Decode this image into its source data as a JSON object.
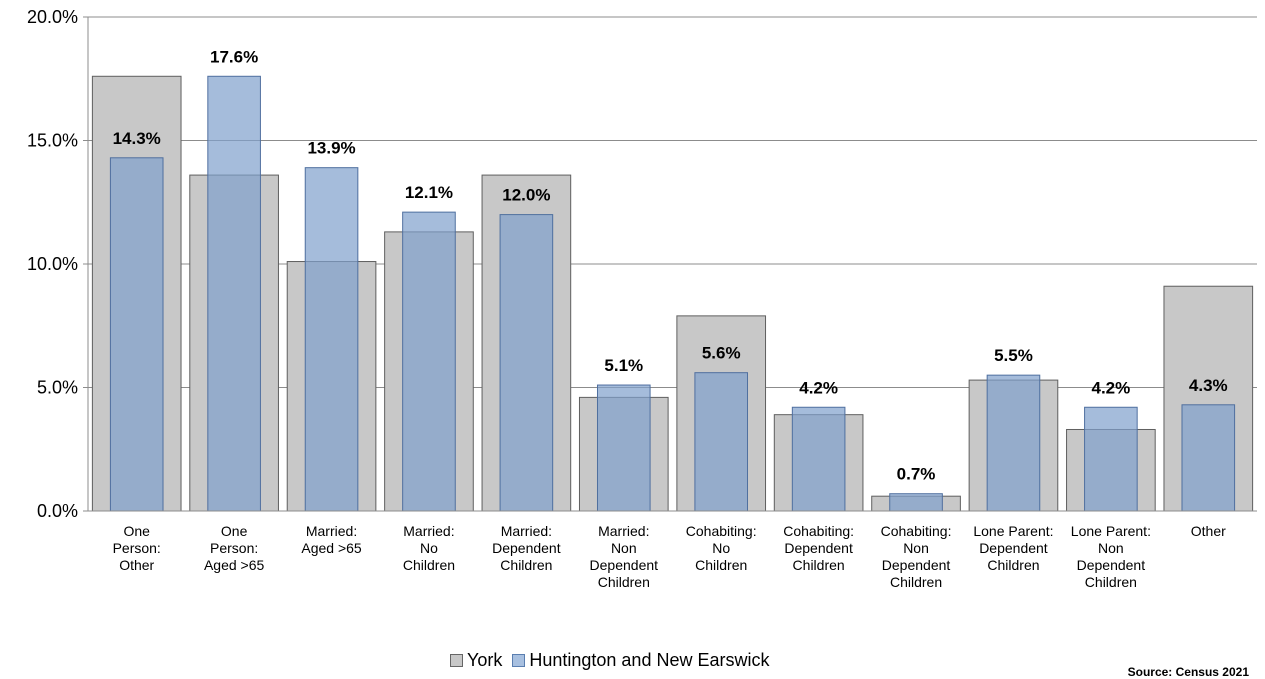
{
  "chart_data": {
    "type": "bar",
    "categories": [
      [
        "One",
        "Person:",
        "Other"
      ],
      [
        "One",
        "Person:",
        "Aged >65"
      ],
      [
        "Married:",
        "Aged >65"
      ],
      [
        "Married:",
        "No",
        "Children"
      ],
      [
        "Married:",
        "Dependent",
        "Children"
      ],
      [
        "Married:",
        "Non",
        "Dependent",
        "Children"
      ],
      [
        "Cohabiting:",
        "No",
        "Children"
      ],
      [
        "Cohabiting:",
        "Dependent",
        "Children"
      ],
      [
        "Cohabiting:",
        "Non",
        "Dependent",
        "Children"
      ],
      [
        "Lone Parent:",
        "Dependent",
        "Children"
      ],
      [
        "Lone Parent:",
        "Non",
        "Dependent",
        "Children"
      ],
      [
        "Other"
      ]
    ],
    "series": [
      {
        "name": "York",
        "color": "#c8c8c8",
        "values": [
          17.6,
          13.6,
          10.1,
          11.3,
          13.6,
          4.6,
          7.9,
          3.9,
          0.6,
          5.3,
          3.3,
          9.1
        ]
      },
      {
        "name": "Huntington and New Earswick",
        "color": "#7f9fcc",
        "values": [
          14.3,
          17.6,
          13.9,
          12.1,
          12.0,
          5.1,
          5.6,
          4.2,
          0.7,
          5.5,
          4.2,
          4.3
        ]
      }
    ],
    "data_labels": [
      "14.3%",
      "17.6%",
      "13.9%",
      "12.1%",
      "12.0%",
      "5.1%",
      "5.6%",
      "4.2%",
      "0.7%",
      "5.5%",
      "4.2%",
      "4.3%"
    ],
    "y_ticks": [
      0,
      5,
      10,
      15,
      20
    ],
    "y_tick_labels": [
      "0.0%",
      "5.0%",
      "10.0%",
      "15.0%",
      "20.0%"
    ],
    "ylim": [
      0,
      20
    ],
    "grid": true,
    "legend": "bottom-center"
  },
  "legend": {
    "york": "York",
    "huntington": "Huntington and New Earswick"
  },
  "source": "Source: Census 2021"
}
